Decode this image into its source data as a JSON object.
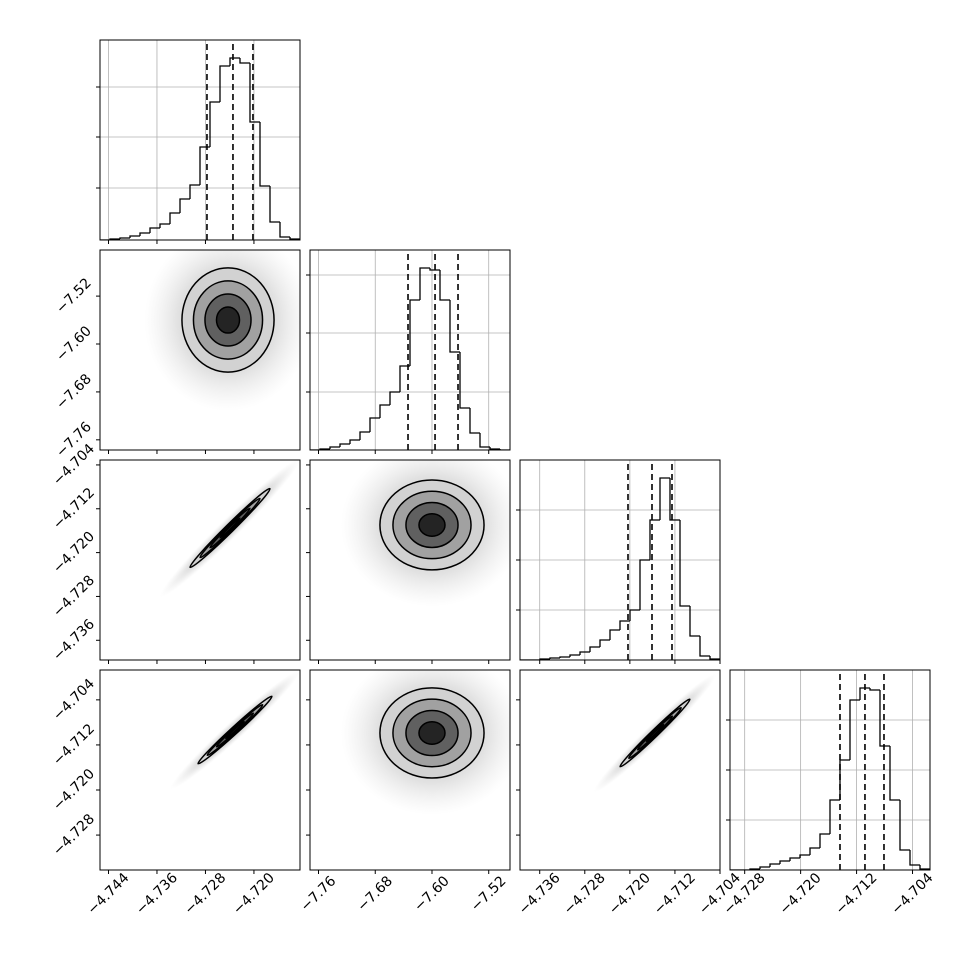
{
  "chart_data": [
    {
      "type": "histogram",
      "bins": [
        -4.7454,
        -4.74375,
        -4.7421,
        -4.74045,
        -4.7388,
        -4.73715,
        -4.7355,
        -4.73385,
        -4.7322,
        -4.73055,
        -4.7289,
        -4.72725,
        -4.7256,
        -4.72395,
        -4.7223,
        -4.72065,
        -4.719,
        -4.71735,
        -4.7157,
        -4.71405,
        -4.7124
      ],
      "values": [
        0,
        0.5,
        1,
        2,
        3.5,
        6,
        8,
        13.5,
        20.5,
        27.5,
        46.5,
        69,
        87,
        91,
        88.5,
        59,
        27,
        9,
        1.5,
        0.5
      ],
      "quantiles": [
        -4.72775,
        -4.72346,
        -4.72016
      ],
      "xlim": [
        -4.7454,
        -4.7124
      ],
      "ylim": [
        0,
        100
      ],
      "xticks": [
        -4.744,
        -4.736,
        -4.728,
        -4.72
      ],
      "yticks": [
        26,
        51.5,
        76.5
      ],
      "grid": true
    },
    {
      "type": "contour",
      "center": [
        -4.72428,
        -7.5599
      ],
      "sigma": [
        0.0038,
        0.0435
      ],
      "corr": 0,
      "levels": [
        0.5,
        1,
        1.5,
        2
      ],
      "xlim": [
        -4.7454,
        -4.7124
      ],
      "ylim": [
        -7.777,
        -7.443
      ],
      "xticks": [
        -4.744,
        -4.736,
        -4.728,
        -4.72
      ],
      "yticks": [
        {
          "value": -7.52,
          "label": "−7.52"
        },
        {
          "value": -7.6,
          "label": "−7.60"
        },
        {
          "value": -7.68,
          "label": "−7.68"
        },
        {
          "value": -7.76,
          "label": "−7.76"
        }
      ]
    },
    {
      "type": "histogram",
      "bins": [
        -7.772,
        -7.7579,
        -7.7438,
        -7.7297,
        -7.7156,
        -7.7015,
        -7.6874,
        -7.6733,
        -7.6592,
        -7.6451,
        -7.631,
        -7.6169,
        -7.6028,
        -7.5887,
        -7.5746,
        -7.5605,
        -7.5464,
        -7.5323,
        -7.5182,
        -7.5041,
        -7.49
      ],
      "values": [
        0,
        0.5,
        1.5,
        3,
        5,
        9,
        16,
        22.5,
        29,
        42,
        75,
        91,
        90,
        75,
        49,
        21,
        8.5,
        1.5,
        0.5,
        0
      ],
      "quantiles": [
        -7.6338,
        -7.5957,
        -7.5633
      ],
      "xlim": [
        -7.772,
        -7.49
      ],
      "ylim": [
        0,
        100
      ],
      "xticks": [
        -7.76,
        -7.68,
        -7.6,
        -7.52
      ],
      "yticks": [
        29,
        58.5,
        87.5
      ],
      "grid": true
    },
    {
      "type": "contour",
      "center": [
        -4.72395,
        -4.71551
      ],
      "sigma": [
        0.0033,
        0.0036
      ],
      "corr": 0.99,
      "levels": [
        0.5,
        1,
        1.5,
        2
      ],
      "xlim": [
        -4.7454,
        -4.7124
      ],
      "ylim": [
        -4.7396,
        -4.7031
      ],
      "xticks": [
        -4.744,
        -4.736,
        -4.728,
        -4.72
      ],
      "yticks": [
        {
          "value": -4.704,
          "label": "−4.704"
        },
        {
          "value": -4.712,
          "label": "−4.712"
        },
        {
          "value": -4.72,
          "label": "−4.720"
        },
        {
          "value": -4.728,
          "label": "−4.728"
        },
        {
          "value": -4.736,
          "label": "−4.736"
        }
      ]
    },
    {
      "type": "contour",
      "center": [
        -7.6,
        -4.71496
      ],
      "sigma": [
        0.0367,
        0.0041
      ],
      "corr": 0,
      "levels": [
        0.5,
        1,
        1.5,
        2
      ],
      "xlim": [
        -7.772,
        -7.49
      ],
      "ylim": [
        -4.7396,
        -4.7031
      ],
      "xticks": [
        -7.76,
        -7.68,
        -7.6,
        -7.52
      ],
      "yticks": [
        -4.704,
        -4.712,
        -4.72,
        -4.728,
        -4.736
      ]
    },
    {
      "type": "histogram",
      "bins": [
        -4.7395,
        -4.737725,
        -4.73595,
        -4.734175,
        -4.7324,
        -4.730625,
        -4.72885,
        -4.727075,
        -4.7253,
        -4.723525,
        -4.72175,
        -4.719975,
        -4.7182,
        -4.716425,
        -4.71465,
        -4.712875,
        -4.7111,
        -4.709325,
        -4.70755,
        -4.705775,
        -4.704
      ],
      "values": [
        0,
        0,
        0.5,
        1,
        1.5,
        2.5,
        4,
        6.5,
        10,
        15,
        19.5,
        25,
        50,
        70,
        91,
        70,
        27,
        12,
        2,
        0.5
      ],
      "quantiles": [
        -4.72033,
        -4.71607,
        -4.71252
      ],
      "xlim": [
        -4.7395,
        -4.704
      ],
      "ylim": [
        0,
        100
      ],
      "xticks": [
        -4.736,
        -4.728,
        -4.72,
        -4.712,
        -4.704
      ],
      "yticks": [
        25,
        50,
        75
      ],
      "grid": true
    },
    {
      "type": "contour",
      "center": [
        -4.72313,
        -4.70935
      ],
      "sigma": [
        0.00305,
        0.003
      ],
      "corr": 0.99,
      "levels": [
        0.5,
        1,
        1.5,
        2
      ],
      "xlim": [
        -4.7454,
        -4.7124
      ],
      "ylim": [
        -4.7342,
        -4.6987
      ],
      "xticks": [
        {
          "value": -4.744,
          "label": "−4.744"
        },
        {
          "value": -4.736,
          "label": "−4.736"
        },
        {
          "value": -4.728,
          "label": "−4.728"
        },
        {
          "value": -4.72,
          "label": "−4.720"
        }
      ],
      "yticks": [
        {
          "value": -4.704,
          "label": "−4.704"
        },
        {
          "value": -4.712,
          "label": "−4.712"
        },
        {
          "value": -4.72,
          "label": "−4.720"
        },
        {
          "value": -4.728,
          "label": "−4.728"
        }
      ]
    },
    {
      "type": "contour",
      "center": [
        -7.6,
        -4.70988
      ],
      "sigma": [
        0.0367,
        0.004
      ],
      "corr": 0,
      "levels": [
        0.5,
        1,
        1.5,
        2
      ],
      "xlim": [
        -7.772,
        -7.49
      ],
      "ylim": [
        -4.7342,
        -4.6987
      ],
      "xticks": [
        {
          "value": -7.76,
          "label": "−7.76"
        },
        {
          "value": -7.68,
          "label": "−7.68"
        },
        {
          "value": -7.6,
          "label": "−7.60"
        },
        {
          "value": -7.52,
          "label": "−7.52"
        }
      ],
      "yticks": [
        -4.704,
        -4.712,
        -4.72,
        -4.728
      ]
    },
    {
      "type": "contour",
      "center": [
        -4.71554,
        -4.70988
      ],
      "sigma": [
        0.0031,
        0.003
      ],
      "corr": 0.99,
      "levels": [
        0.5,
        1,
        1.5,
        2
      ],
      "xlim": [
        -4.7395,
        -4.704
      ],
      "ylim": [
        -4.7342,
        -4.6987
      ],
      "xticks": [
        {
          "value": -4.736,
          "label": "−4.736"
        },
        {
          "value": -4.728,
          "label": "−4.728"
        },
        {
          "value": -4.72,
          "label": "−4.720"
        },
        {
          "value": -4.712,
          "label": "−4.712"
        },
        {
          "value": -4.704,
          "label": "−4.704"
        }
      ],
      "yticks": [
        -4.704,
        -4.712,
        -4.72,
        -4.728
      ]
    },
    {
      "type": "histogram",
      "bins": [
        -4.7301,
        -4.72867,
        -4.72724,
        -4.72581,
        -4.72438,
        -4.72295,
        -4.72152,
        -4.72009,
        -4.71866,
        -4.71723,
        -4.7158,
        -4.71437,
        -4.71294,
        -4.71151,
        -4.71008,
        -4.70865,
        -4.70722,
        -4.70579,
        -4.70436,
        -4.70293,
        -4.7015
      ],
      "values": [
        0,
        0,
        0.5,
        1.5,
        3,
        4.5,
        6,
        7.5,
        11,
        18,
        35,
        55,
        85,
        91,
        90,
        62,
        35,
        10,
        2.5,
        0.5
      ],
      "quantiles": [
        -4.71437,
        -4.7108,
        -4.70808
      ],
      "xlim": [
        -4.7301,
        -4.7015
      ],
      "ylim": [
        0,
        100
      ],
      "xticks": [
        {
          "value": -4.728,
          "label": "−4.728"
        },
        {
          "value": -4.72,
          "label": "−4.720"
        },
        {
          "value": -4.712,
          "label": "−4.712"
        },
        {
          "value": -4.704,
          "label": "−4.704"
        }
      ],
      "yticks": [
        25,
        50,
        75
      ],
      "grid": true
    }
  ]
}
